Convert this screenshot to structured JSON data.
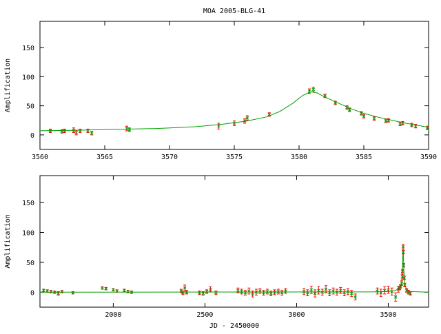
{
  "chart_data": [
    {
      "type": "scatter",
      "title": "MOA 2005-BLG-41",
      "xlabel": "",
      "ylabel": "Amplification",
      "xlim": [
        3560,
        3590
      ],
      "ylim": [
        -25,
        195
      ],
      "xticks": [
        3560,
        3565,
        3570,
        3575,
        3580,
        3585,
        3590
      ],
      "yticks": [
        0,
        50,
        100,
        150
      ],
      "colors": {
        "points": "#ff0000",
        "model": "#00a000"
      },
      "model": {
        "x": [
          3560,
          3563,
          3566,
          3569,
          3572,
          3574,
          3576,
          3577.5,
          3578.5,
          3579.5,
          3580.3,
          3580.9,
          3581.4,
          3582,
          3583,
          3584,
          3585,
          3586,
          3587,
          3588,
          3589,
          3590
        ],
        "y": [
          7,
          8,
          9.5,
          11,
          14,
          18,
          24,
          31,
          40,
          54,
          68,
          74,
          72,
          65,
          55,
          45,
          37,
          31,
          26,
          21,
          17,
          13
        ]
      },
      "points": [
        {
          "x": 3560.8,
          "y": 7,
          "e": 3
        },
        {
          "x": 3561.7,
          "y": 6,
          "e": 3
        },
        {
          "x": 3561.9,
          "y": 7,
          "e": 3
        },
        {
          "x": 3562.6,
          "y": 8,
          "e": 4
        },
        {
          "x": 3562.8,
          "y": 4,
          "e": 4
        },
        {
          "x": 3563.1,
          "y": 7,
          "e": 3
        },
        {
          "x": 3563.7,
          "y": 7,
          "e": 3
        },
        {
          "x": 3564.0,
          "y": 3,
          "e": 3
        },
        {
          "x": 3566.7,
          "y": 11,
          "e": 4
        },
        {
          "x": 3566.9,
          "y": 9,
          "e": 3
        },
        {
          "x": 3573.8,
          "y": 15,
          "e": 5
        },
        {
          "x": 3575.0,
          "y": 20,
          "e": 4
        },
        {
          "x": 3575.8,
          "y": 24,
          "e": 4
        },
        {
          "x": 3576.0,
          "y": 29,
          "e": 4
        },
        {
          "x": 3577.7,
          "y": 35,
          "e": 3
        },
        {
          "x": 3580.8,
          "y": 75,
          "e": 4
        },
        {
          "x": 3581.1,
          "y": 78,
          "e": 4
        },
        {
          "x": 3582.0,
          "y": 67,
          "e": 3
        },
        {
          "x": 3582.8,
          "y": 55,
          "e": 3
        },
        {
          "x": 3583.7,
          "y": 47,
          "e": 3
        },
        {
          "x": 3583.9,
          "y": 43,
          "e": 3
        },
        {
          "x": 3584.8,
          "y": 37,
          "e": 3
        },
        {
          "x": 3585.0,
          "y": 32,
          "e": 3
        },
        {
          "x": 3585.8,
          "y": 28,
          "e": 3
        },
        {
          "x": 3586.7,
          "y": 24,
          "e": 3
        },
        {
          "x": 3586.9,
          "y": 25,
          "e": 3
        },
        {
          "x": 3587.8,
          "y": 19,
          "e": 3
        },
        {
          "x": 3588.0,
          "y": 20,
          "e": 3
        },
        {
          "x": 3588.7,
          "y": 17,
          "e": 3
        },
        {
          "x": 3589.0,
          "y": 15,
          "e": 3
        },
        {
          "x": 3589.9,
          "y": 12,
          "e": 3
        }
      ]
    },
    {
      "type": "scatter",
      "title": "",
      "xlabel": "JD - 2450000",
      "ylabel": "Amplification",
      "xlim": [
        1600,
        3720
      ],
      "ylim": [
        -25,
        195
      ],
      "xticks": [
        2000,
        2500,
        3000,
        3500
      ],
      "yticks": [
        0,
        50,
        100,
        150
      ],
      "colors": {
        "points": "#ff0000",
        "model": "#00a000"
      },
      "model": {
        "x": [
          1600,
          3400,
          3500,
          3540,
          3560,
          3570,
          3576,
          3580,
          3581,
          3582,
          3585,
          3590,
          3600,
          3620,
          3720
        ],
        "y": [
          0,
          0.5,
          1,
          3,
          7,
          11,
          23,
          70,
          74,
          65,
          37,
          13,
          4,
          1,
          0
        ]
      },
      "points": [
        {
          "x": 1620,
          "y": 3,
          "e": 2
        },
        {
          "x": 1640,
          "y": 2,
          "e": 2
        },
        {
          "x": 1660,
          "y": 1,
          "e": 2
        },
        {
          "x": 1680,
          "y": 0,
          "e": 2
        },
        {
          "x": 1700,
          "y": -2,
          "e": 3
        },
        {
          "x": 1720,
          "y": 1,
          "e": 2
        },
        {
          "x": 1780,
          "y": -1,
          "e": 2
        },
        {
          "x": 1940,
          "y": 7,
          "e": 2
        },
        {
          "x": 1960,
          "y": 6,
          "e": 2
        },
        {
          "x": 2000,
          "y": 4,
          "e": 2
        },
        {
          "x": 2020,
          "y": 2,
          "e": 2
        },
        {
          "x": 2060,
          "y": 3,
          "e": 2
        },
        {
          "x": 2080,
          "y": 1,
          "e": 2
        },
        {
          "x": 2100,
          "y": 0,
          "e": 2
        },
        {
          "x": 2370,
          "y": 2,
          "e": 3
        },
        {
          "x": 2380,
          "y": -1,
          "e": 3
        },
        {
          "x": 2390,
          "y": 7,
          "e": 5
        },
        {
          "x": 2400,
          "y": 0,
          "e": 3
        },
        {
          "x": 2470,
          "y": -1,
          "e": 3
        },
        {
          "x": 2490,
          "y": -2,
          "e": 3
        },
        {
          "x": 2510,
          "y": 1,
          "e": 3
        },
        {
          "x": 2530,
          "y": 5,
          "e": 4
        },
        {
          "x": 2560,
          "y": -1,
          "e": 3
        },
        {
          "x": 2680,
          "y": 3,
          "e": 4
        },
        {
          "x": 2700,
          "y": 1,
          "e": 4
        },
        {
          "x": 2720,
          "y": -1,
          "e": 4
        },
        {
          "x": 2740,
          "y": 2,
          "e": 5
        },
        {
          "x": 2760,
          "y": -3,
          "e": 5
        },
        {
          "x": 2780,
          "y": 0,
          "e": 5
        },
        {
          "x": 2800,
          "y": 2,
          "e": 4
        },
        {
          "x": 2820,
          "y": -1,
          "e": 4
        },
        {
          "x": 2840,
          "y": 1,
          "e": 4
        },
        {
          "x": 2860,
          "y": -2,
          "e": 4
        },
        {
          "x": 2880,
          "y": 0,
          "e": 4
        },
        {
          "x": 2900,
          "y": 1,
          "e": 4
        },
        {
          "x": 2920,
          "y": -1,
          "e": 4
        },
        {
          "x": 2940,
          "y": 2,
          "e": 4
        },
        {
          "x": 3040,
          "y": 1,
          "e": 5
        },
        {
          "x": 3060,
          "y": -1,
          "e": 5
        },
        {
          "x": 3080,
          "y": 4,
          "e": 6
        },
        {
          "x": 3100,
          "y": -2,
          "e": 6
        },
        {
          "x": 3120,
          "y": 3,
          "e": 6
        },
        {
          "x": 3140,
          "y": 0,
          "e": 5
        },
        {
          "x": 3160,
          "y": 5,
          "e": 6
        },
        {
          "x": 3180,
          "y": -1,
          "e": 5
        },
        {
          "x": 3200,
          "y": 2,
          "e": 5
        },
        {
          "x": 3220,
          "y": 0,
          "e": 5
        },
        {
          "x": 3240,
          "y": 3,
          "e": 5
        },
        {
          "x": 3260,
          "y": -1,
          "e": 5
        },
        {
          "x": 3280,
          "y": 1,
          "e": 5
        },
        {
          "x": 3300,
          "y": -2,
          "e": 5
        },
        {
          "x": 3320,
          "y": -8,
          "e": 5
        },
        {
          "x": 3440,
          "y": 2,
          "e": 5
        },
        {
          "x": 3460,
          "y": -1,
          "e": 6
        },
        {
          "x": 3480,
          "y": 3,
          "e": 6
        },
        {
          "x": 3500,
          "y": 4,
          "e": 6
        },
        {
          "x": 3520,
          "y": 1,
          "e": 6
        },
        {
          "x": 3540,
          "y": -8,
          "e": 7
        },
        {
          "x": 3555,
          "y": 5,
          "e": 5
        },
        {
          "x": 3562,
          "y": 7,
          "e": 3
        },
        {
          "x": 3567,
          "y": 10,
          "e": 3
        },
        {
          "x": 3573,
          "y": 15,
          "e": 4
        },
        {
          "x": 3576,
          "y": 26,
          "e": 4
        },
        {
          "x": 3578,
          "y": 35,
          "e": 3
        },
        {
          "x": 3581,
          "y": 76,
          "e": 4
        },
        {
          "x": 3582,
          "y": 67,
          "e": 3
        },
        {
          "x": 3584,
          "y": 45,
          "e": 3
        },
        {
          "x": 3587,
          "y": 24,
          "e": 3
        },
        {
          "x": 3590,
          "y": 12,
          "e": 3
        },
        {
          "x": 3600,
          "y": 3,
          "e": 3
        },
        {
          "x": 3610,
          "y": 0,
          "e": 3
        },
        {
          "x": 3620,
          "y": -2,
          "e": 3
        }
      ]
    }
  ]
}
